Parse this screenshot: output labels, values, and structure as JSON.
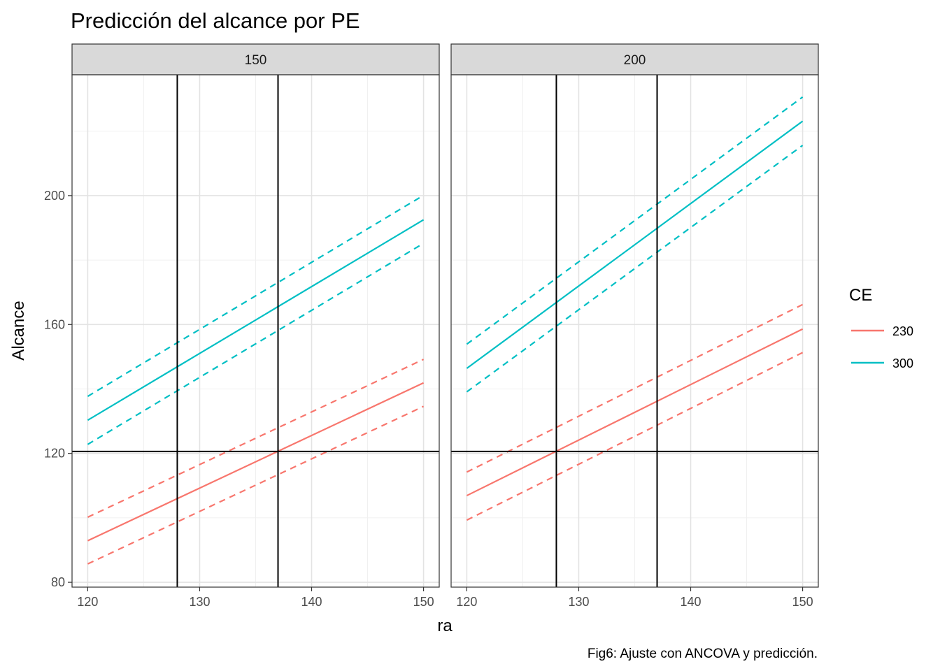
{
  "chart_data": {
    "type": "line",
    "title": "Predicción del alcance por PE",
    "caption": "Fig6: Ajuste con ANCOVA y predicción.",
    "xlabel": "ra",
    "ylabel": "Alcance",
    "xlim": [
      118.6,
      151.4
    ],
    "ylim": [
      78.5,
      237.5
    ],
    "x_ticks": [
      120,
      130,
      140,
      150
    ],
    "x_tick_labels": [
      "120",
      "130",
      "140",
      "150"
    ],
    "x_minor_ticks": [
      125,
      135,
      145
    ],
    "y_ticks": [
      80,
      120,
      160,
      200
    ],
    "y_tick_labels": [
      "80",
      "120",
      "160",
      "200"
    ],
    "y_minor_ticks": [
      100,
      140,
      180,
      220
    ],
    "grid": true,
    "legend": {
      "title": "CE",
      "position": "right",
      "entries": [
        {
          "label": "230",
          "color": "#F8766D"
        },
        {
          "label": "300",
          "color": "#00BFC4"
        }
      ]
    },
    "hline": 120.6,
    "vlines": [
      128,
      137
    ],
    "panels": [
      {
        "strip": "150",
        "series": [
          {
            "name": "230",
            "kind": "fit",
            "x": [
              120,
              150
            ],
            "y": [
              92.9,
              141.9
            ]
          },
          {
            "name": "230",
            "kind": "lower",
            "x": [
              120,
              150
            ],
            "y": [
              85.7,
              134.6
            ]
          },
          {
            "name": "230",
            "kind": "upper",
            "x": [
              120,
              150
            ],
            "y": [
              100.2,
              149.2
            ]
          },
          {
            "name": "300",
            "kind": "fit",
            "x": [
              120,
              150
            ],
            "y": [
              130.3,
              192.5
            ]
          },
          {
            "name": "300",
            "kind": "lower",
            "x": [
              120,
              150
            ],
            "y": [
              122.8,
              185.2
            ]
          },
          {
            "name": "300",
            "kind": "upper",
            "x": [
              120,
              150
            ],
            "y": [
              137.7,
              200.1
            ]
          }
        ]
      },
      {
        "strip": "200",
        "series": [
          {
            "name": "230",
            "kind": "fit",
            "x": [
              120,
              150
            ],
            "y": [
              106.9,
              158.6
            ]
          },
          {
            "name": "230",
            "kind": "lower",
            "x": [
              120,
              150
            ],
            "y": [
              99.3,
              151.3
            ]
          },
          {
            "name": "230",
            "kind": "upper",
            "x": [
              120,
              150
            ],
            "y": [
              114.2,
              166.2
            ]
          },
          {
            "name": "300",
            "kind": "fit",
            "x": [
              120,
              150
            ],
            "y": [
              146.4,
              223.1
            ]
          },
          {
            "name": "300",
            "kind": "lower",
            "x": [
              120,
              150
            ],
            "y": [
              139.1,
              215.6
            ]
          },
          {
            "name": "300",
            "kind": "upper",
            "x": [
              120,
              150
            ],
            "y": [
              153.9,
              230.6
            ]
          }
        ]
      }
    ]
  }
}
